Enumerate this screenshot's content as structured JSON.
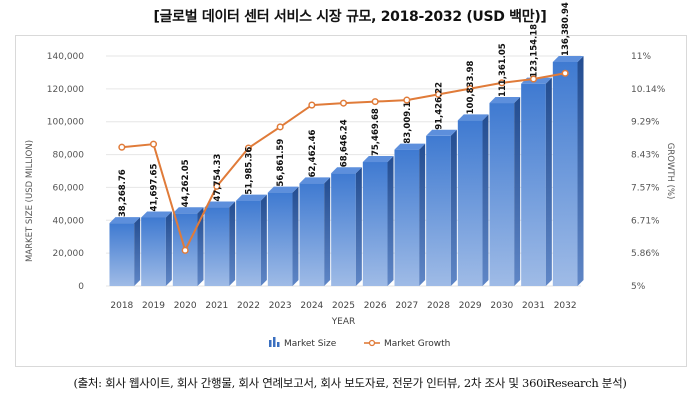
{
  "title": "[글로벌 데이터 센터 서비스 시장 규모, 2018-2032 (USD 백만)]",
  "source": "(출처: 회사 웹사이트, 회사 간행물, 회사 연례보고서, 회사 보도자료, 전문가 인터뷰, 2차 조사 및 360iResearch 분석)",
  "chart_data": {
    "type": "bar+line",
    "xlabel": "YEAR",
    "ylabel": "MARKET SIZE (USD MILLION)",
    "y2label": "GROWTH (%)",
    "ylim": [
      0,
      140000
    ],
    "y2lim": [
      5,
      11
    ],
    "yticks": [
      "0",
      "20,000",
      "40,000",
      "60,000",
      "80,000",
      "100,000",
      "120,000",
      "140,000"
    ],
    "y2ticks": [
      "5%",
      "5.86%",
      "6.71%",
      "7.57%",
      "8.43%",
      "9.29%",
      "10.14%",
      "11%"
    ],
    "categories": [
      "2018",
      "2019",
      "2020",
      "2021",
      "2022",
      "2023",
      "2024",
      "2025",
      "2026",
      "2027",
      "2028",
      "2029",
      "2030",
      "2031",
      "2032"
    ],
    "series": [
      {
        "name": "Market Size",
        "values": [
          38268.76,
          41697.65,
          44262.05,
          47754.33,
          51985.36,
          56861.59,
          62462.46,
          68646.24,
          75469.68,
          83009.1,
          91426.22,
          100833.98,
          111361.05,
          123154.18,
          136380.94
        ],
        "labels": [
          "38,268.76",
          "41,697.65",
          "44,262.05",
          "47,754.33",
          "51,985.36",
          "56,861.59",
          "62,462.46",
          "68,646.24",
          "75,469.68",
          "83,009.1",
          "91,426.22",
          "100,833.98",
          "111,361.05",
          "123,154.18",
          "136,380.94"
        ]
      },
      {
        "name": "Market Growth",
        "values": [
          8.62,
          8.7,
          5.93,
          7.6,
          8.6,
          9.15,
          9.72,
          9.77,
          9.81,
          9.85,
          10.0,
          10.15,
          10.3,
          10.4,
          10.55
        ]
      }
    ],
    "legend": [
      "Market Size",
      "Market Growth"
    ],
    "legend_position": "bottom",
    "bar_color": "#3a6fc0",
    "line_color": "#e07b39"
  }
}
